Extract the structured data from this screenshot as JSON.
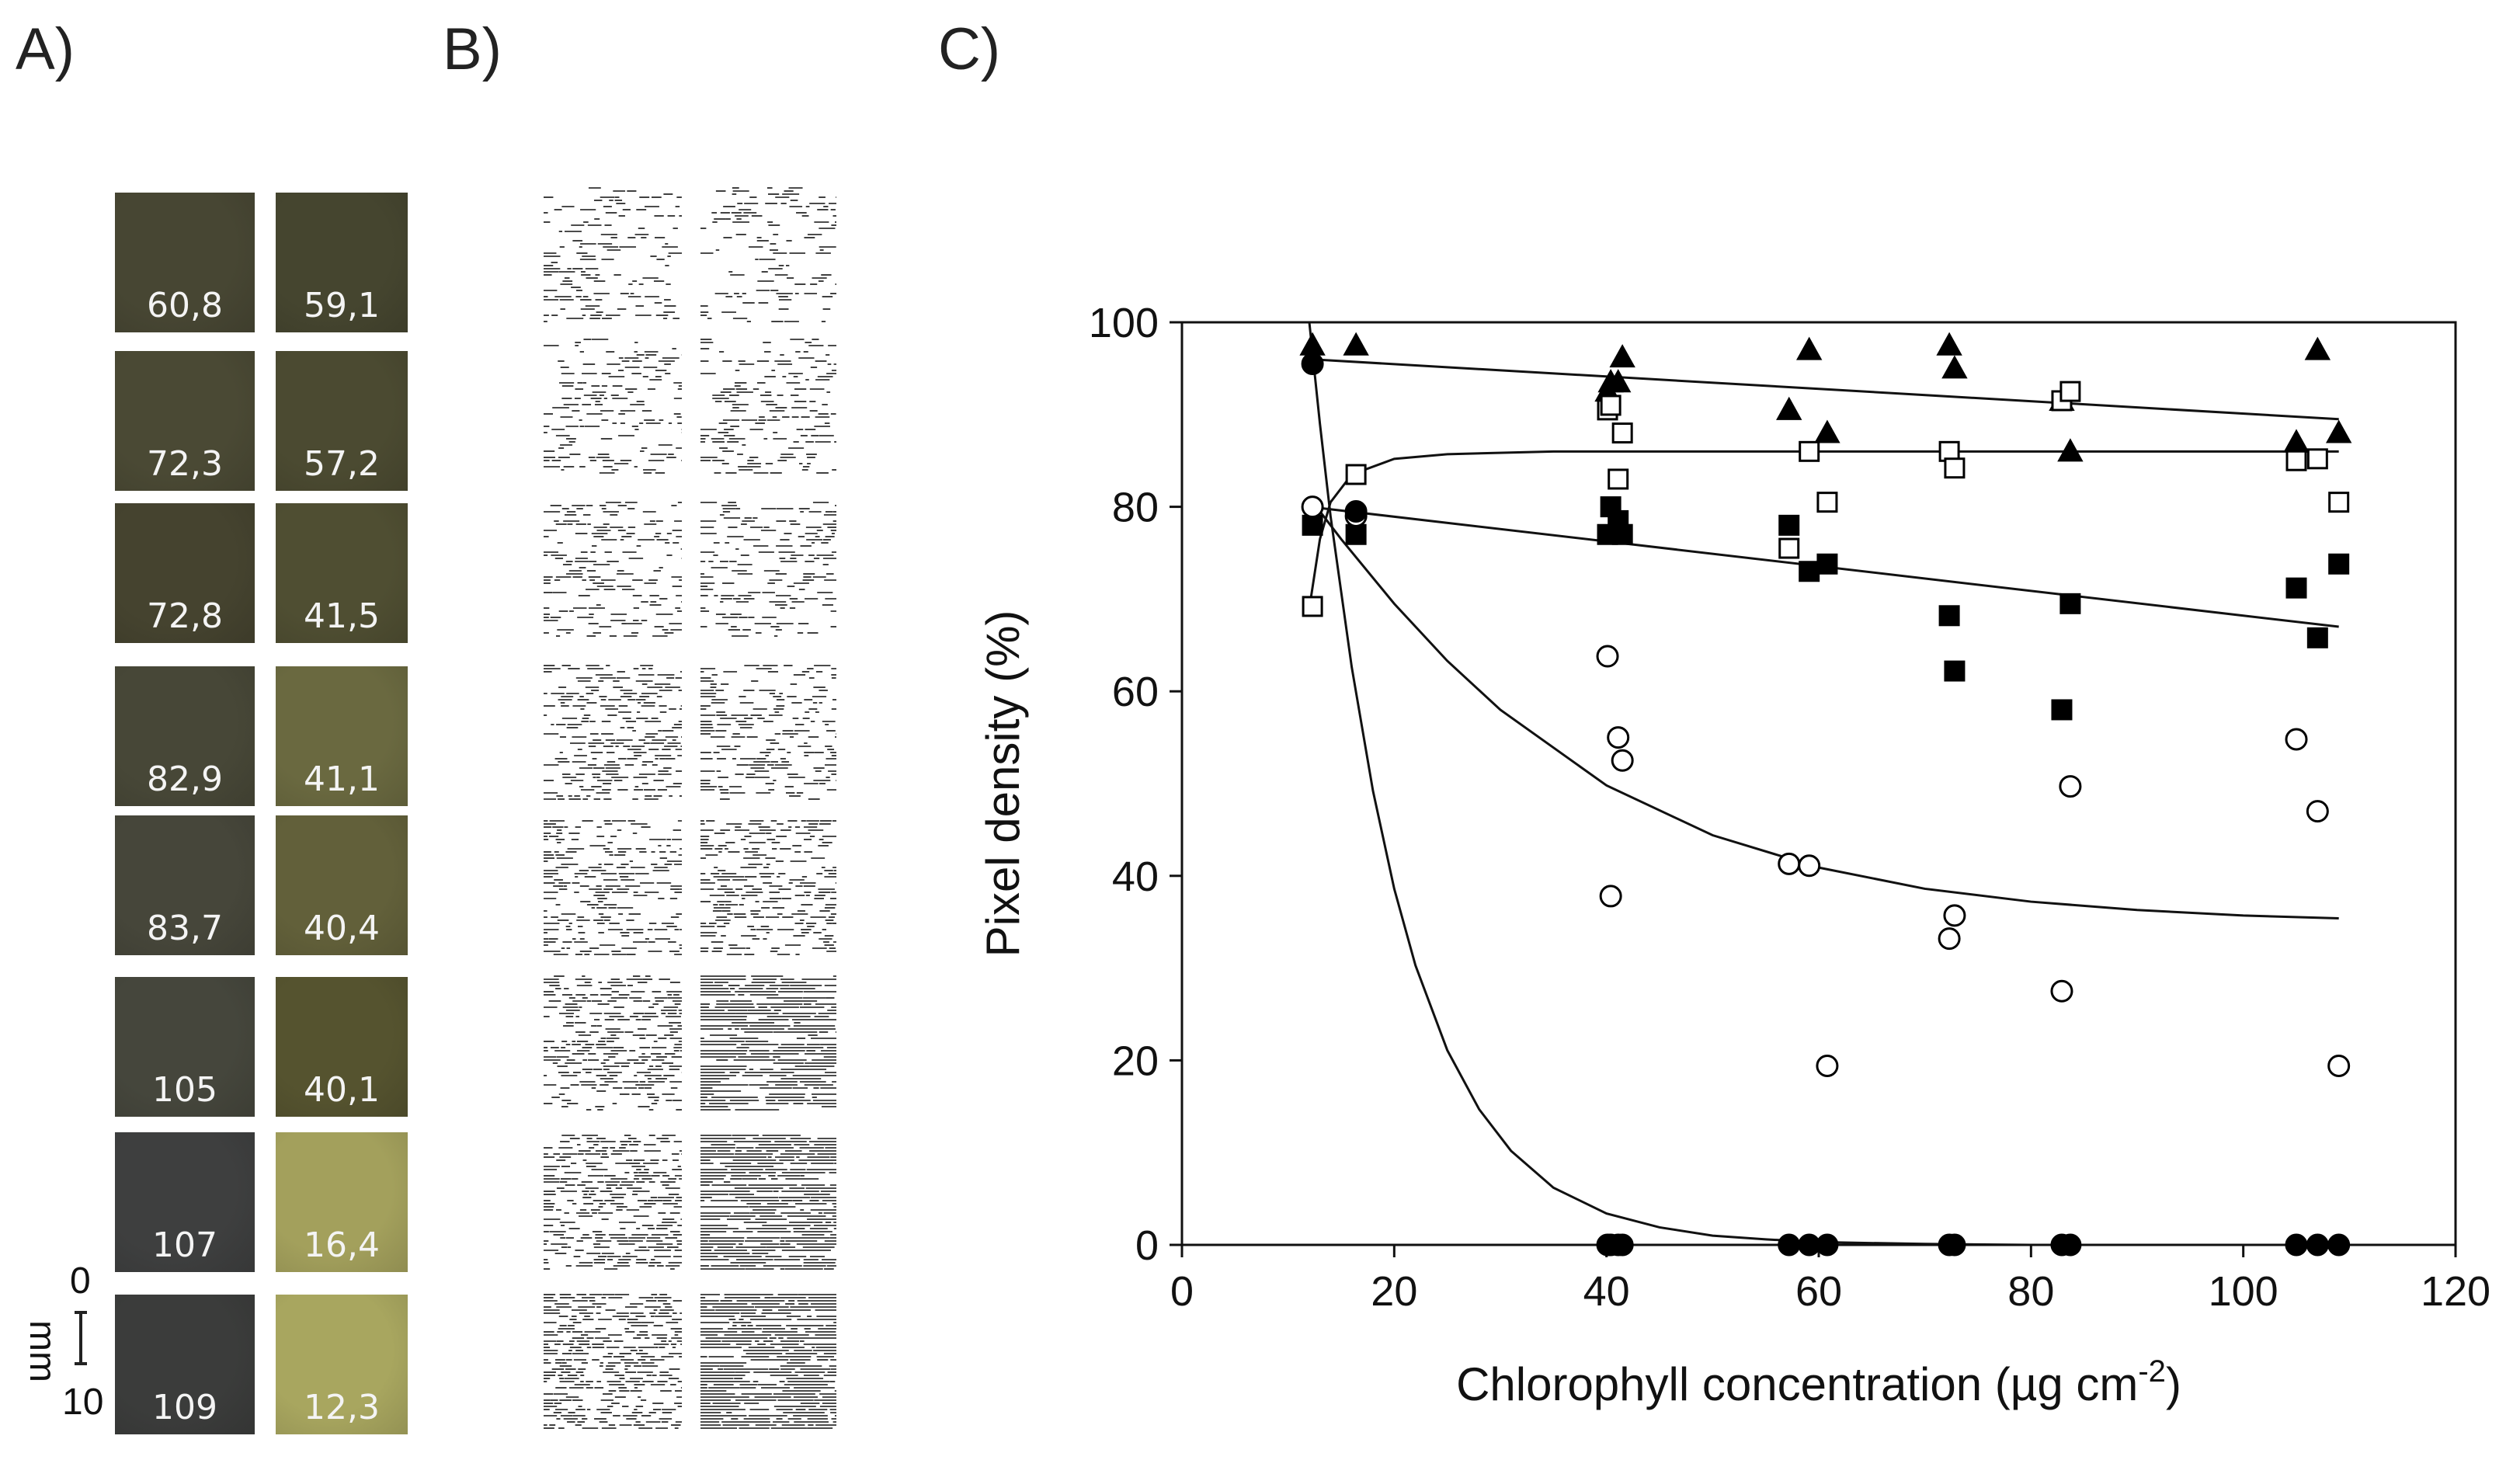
{
  "panels": {
    "a": "A)",
    "b": "B)",
    "c": "C)"
  },
  "swatches": [
    {
      "left": "60,8",
      "right": "59,1",
      "left_color": "#474633",
      "right_color": "#45452f"
    },
    {
      "left": "72,3",
      "right": "57,2",
      "left_color": "#4a4934",
      "right_color": "#4b4a31"
    },
    {
      "left": "72,8",
      "right": "41,5",
      "left_color": "#45432f",
      "right_color": "#4f4e32"
    },
    {
      "left": "82,9",
      "right": "41,1",
      "left_color": "#474737",
      "right_color": "#6a6940"
    },
    {
      "left": "83,7",
      "right": "40,4",
      "left_color": "#46463a",
      "right_color": "#62603a"
    },
    {
      "left": "105",
      "right": "40,1",
      "left_color": "#45463c",
      "right_color": "#55532f"
    },
    {
      "left": "107",
      "right": "16,4",
      "left_color": "#3e3f3f",
      "right_color": "#a3a05c"
    },
    {
      "left": "109",
      "right": "12,3",
      "left_color": "#3b3c3b",
      "right_color": "#a8a65f"
    }
  ],
  "scale_bar": {
    "zero": "0",
    "ten": "10",
    "unit": "mm"
  },
  "chart_data": {
    "type": "scatter",
    "xlabel": "Chlorophyll concentration (µg cm",
    "xlabel_sup": "-2",
    "xlabel_end": ")",
    "ylabel": "Pixel density (%)",
    "xlim": [
      0,
      120
    ],
    "ylim": [
      0,
      100
    ],
    "xticks": [
      "0",
      "20",
      "40",
      "60",
      "80",
      "100",
      "120"
    ],
    "yticks": [
      "0",
      "20",
      "40",
      "60",
      "80",
      "100"
    ],
    "series": [
      {
        "name": "filled-triangle",
        "marker": "triangle",
        "filled": true,
        "x": [
          12.3,
          16.4,
          40.1,
          40.4,
          41.1,
          41.5,
          57.2,
          59.1,
          60.8,
          72.3,
          72.8,
          82.9,
          83.7,
          105,
          107,
          109
        ],
        "y": [
          97.5,
          97.5,
          92.5,
          93.5,
          93.5,
          96.2,
          90.5,
          97,
          88,
          97.5,
          95,
          91.5,
          86,
          87,
          97,
          88
        ],
        "fit": {
          "x": [
            12,
            109
          ],
          "y": [
            96,
            89.5
          ]
        }
      },
      {
        "name": "open-square",
        "marker": "square",
        "filled": false,
        "x": [
          12.3,
          16.4,
          40.1,
          40.4,
          41.1,
          41.5,
          57.2,
          59.1,
          60.8,
          72.3,
          72.8,
          82.9,
          83.7,
          105,
          107,
          109
        ],
        "y": [
          69.2,
          83.5,
          90.5,
          91,
          83,
          88,
          75.5,
          86,
          80.5,
          86,
          84.2,
          91.5,
          92.5,
          85,
          85.2,
          80.5
        ],
        "fit": {
          "x": [
            12,
            13,
            14,
            16,
            20,
            25,
            35,
            60,
            109
          ],
          "y": [
            69,
            76.5,
            80.5,
            83.5,
            85.2,
            85.7,
            86,
            86,
            86
          ]
        }
      },
      {
        "name": "filled-square",
        "marker": "square",
        "filled": true,
        "x": [
          12.3,
          16.4,
          40.1,
          40.4,
          41.1,
          41.5,
          57.2,
          59.1,
          60.8,
          72.3,
          72.8,
          82.9,
          83.7,
          105,
          107,
          109
        ],
        "y": [
          78,
          77,
          77,
          80,
          78.5,
          77,
          78,
          73,
          73.8,
          68.2,
          62.2,
          58,
          69.5,
          71.2,
          65.8,
          73.8
        ],
        "fit": {
          "x": [
            12,
            109
          ],
          "y": [
            80,
            67
          ]
        }
      },
      {
        "name": "open-circle",
        "marker": "circle",
        "filled": false,
        "x": [
          12.3,
          16.4,
          40.1,
          40.4,
          41.1,
          41.5,
          57.2,
          59.1,
          60.8,
          72.3,
          72.8,
          82.9,
          83.7,
          105,
          107,
          109
        ],
        "y": [
          80,
          79,
          63.8,
          37.8,
          55,
          52.5,
          41.3,
          41.1,
          19.4,
          33.2,
          35.7,
          27.5,
          49.7,
          54.8,
          47,
          19.4
        ],
        "fit": {
          "x": [
            12,
            15,
            20,
            25,
            30,
            40,
            50,
            60,
            70,
            80,
            90,
            100,
            109
          ],
          "y": [
            81,
            76.5,
            69.5,
            63.3,
            58,
            49.8,
            44.4,
            40.9,
            38.6,
            37.2,
            36.3,
            35.7,
            35.4
          ]
        }
      },
      {
        "name": "filled-circle",
        "marker": "circle",
        "filled": true,
        "x": [
          12.3,
          16.4,
          40.1,
          40.4,
          41.1,
          41.5,
          57.2,
          59.1,
          60.8,
          72.3,
          72.8,
          82.9,
          83.7,
          105,
          107,
          109
        ],
        "y": [
          95.5,
          79.5,
          0,
          0,
          0,
          0,
          0,
          0,
          0,
          0,
          0,
          0,
          0,
          0,
          0,
          0
        ],
        "fit": {
          "x": [
            12,
            13,
            14,
            16,
            18,
            20,
            22,
            25,
            28,
            31,
            35,
            40,
            45,
            50,
            55,
            60,
            70,
            80,
            90,
            109
          ],
          "y": [
            100,
            89,
            79,
            62.6,
            49.2,
            38.6,
            30.3,
            21.1,
            14.7,
            10.2,
            6.2,
            3.4,
            1.9,
            1,
            0.6,
            0.3,
            0.1,
            0,
            0,
            0
          ]
        }
      }
    ]
  }
}
